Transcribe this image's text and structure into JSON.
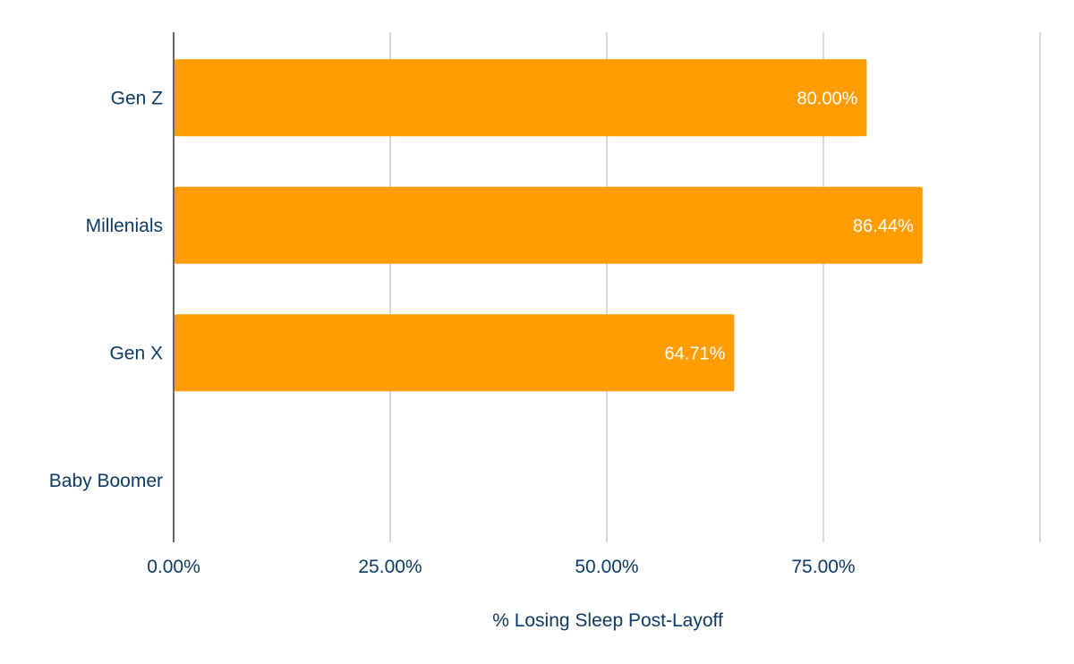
{
  "chart_data": {
    "type": "bar",
    "orientation": "horizontal",
    "categories": [
      "Gen Z",
      "Millenials",
      "Gen X",
      "Baby Boomer"
    ],
    "values": [
      80.0,
      86.44,
      64.71,
      0
    ],
    "data_labels": [
      "80.00%",
      "86.44%",
      "64.71%",
      ""
    ],
    "title": "",
    "xlabel": "% Losing Sleep Post-Layoff",
    "ylabel": "",
    "xlim": [
      0,
      100
    ],
    "x_ticks": [
      0,
      25,
      50,
      75,
      100
    ],
    "x_tick_labels": [
      "0.00%",
      "25.00%",
      "50.00%",
      "75.00%",
      ""
    ],
    "grid": true,
    "legend": "none",
    "colors": {
      "bar": "#ff9c00",
      "text": "#0b3a63",
      "grid": "#cccccc",
      "axis": "#333333",
      "data_label": "#ffffff"
    }
  }
}
